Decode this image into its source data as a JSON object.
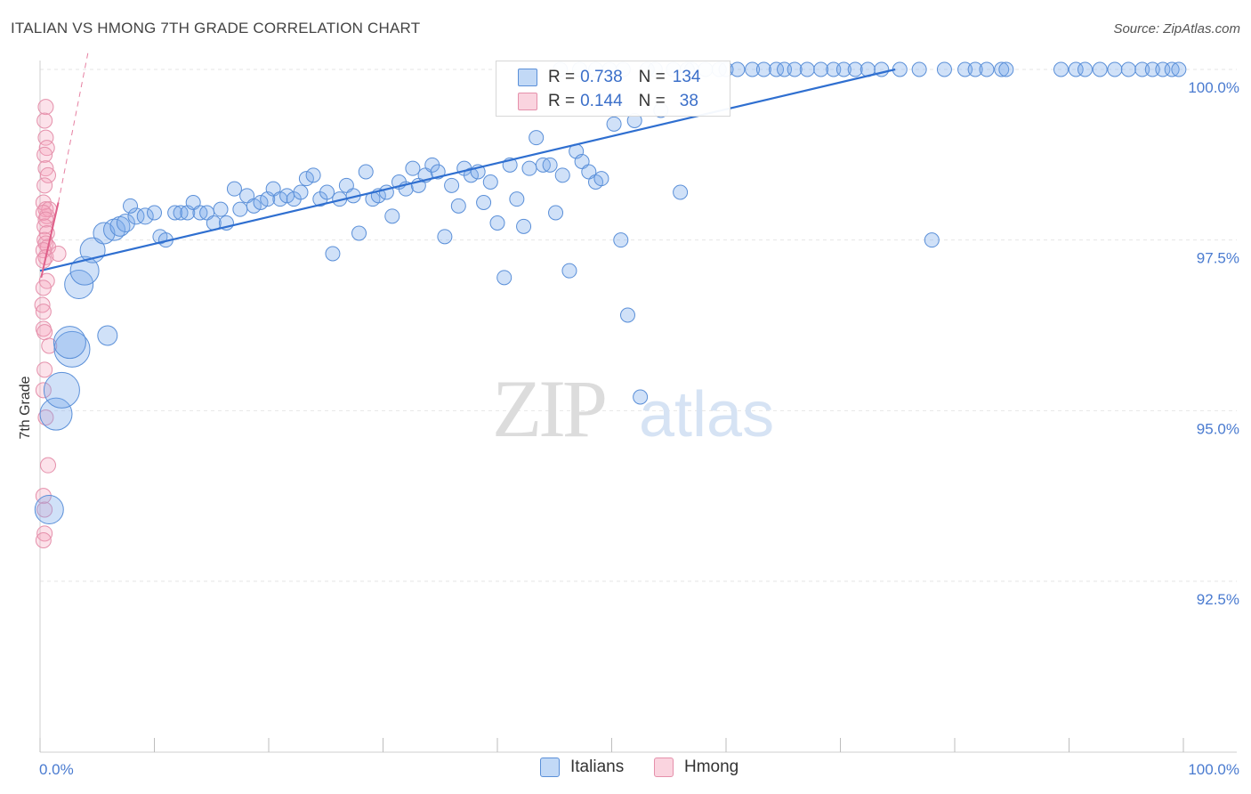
{
  "title": "ITALIAN VS HMONG 7TH GRADE CORRELATION CHART",
  "source": "Source: ZipAtlas.com",
  "watermark": {
    "zip": "ZIP",
    "atlas": "atlas"
  },
  "colors": {
    "italians_fill": "rgba(120,170,235,0.35)",
    "italians_stroke": "#5a8fd8",
    "italians_line": "#2f6fd0",
    "hmong_fill": "rgba(245,160,185,0.30)",
    "hmong_stroke": "#e590ab",
    "hmong_line": "#e0608a",
    "grid": "#e6e6e6",
    "axis_text": "#4a7bd0"
  },
  "legend": {
    "row1": {
      "r_label": "R =",
      "r_value": "0.738",
      "n_label": "N =",
      "n_value": "134"
    },
    "row2": {
      "r_label": "R =",
      "r_value": "0.144",
      "n_label": "N =",
      "n_value": "38"
    }
  },
  "bottom_legend": {
    "italians": "Italians",
    "hmong": "Hmong"
  },
  "chart_data": {
    "type": "scatter",
    "title": "ITALIAN VS HMONG 7TH GRADE CORRELATION CHART",
    "xlabel": "",
    "ylabel": "7th Grade",
    "xlim": [
      0,
      100
    ],
    "ylim": [
      90.2,
      100.3
    ],
    "x_tick_labels": [
      "0.0%",
      "100.0%"
    ],
    "y_ticks": [
      92.5,
      95.0,
      97.5,
      100.0
    ],
    "y_tick_labels": [
      "92.5%",
      "95.0%",
      "97.5%",
      "100.0%"
    ],
    "grid": true,
    "legend_position": "top-center",
    "series": [
      {
        "name": "Italians",
        "R": 0.738,
        "N": 134,
        "trend": {
          "x": [
            0.0,
            74.8
          ],
          "y": [
            97.05,
            100.0
          ]
        },
        "points": [
          [
            0.8,
            93.55,
            1.6
          ],
          [
            1.4,
            94.95,
            1.8
          ],
          [
            1.9,
            95.3,
            2.0
          ],
          [
            2.8,
            95.9,
            2.0
          ],
          [
            2.6,
            96.0,
            1.8
          ],
          [
            3.4,
            96.85,
            1.6
          ],
          [
            3.9,
            97.05,
            1.6
          ],
          [
            4.6,
            97.35,
            1.4
          ],
          [
            5.6,
            97.6,
            1.2
          ],
          [
            6.5,
            97.65,
            1.2
          ],
          [
            7.0,
            97.7,
            1.1
          ],
          [
            5.9,
            96.1,
            1.1
          ],
          [
            7.5,
            97.75,
            1.0
          ],
          [
            8.4,
            97.85,
            0.9
          ],
          [
            9.2,
            97.85,
            0.9
          ],
          [
            10.0,
            97.9,
            0.8
          ],
          [
            7.9,
            98.0,
            0.8
          ],
          [
            10.5,
            97.55,
            0.8
          ],
          [
            11.0,
            97.5,
            0.8
          ],
          [
            11.8,
            97.9,
            0.8
          ],
          [
            12.3,
            97.9,
            0.8
          ],
          [
            12.9,
            97.9,
            0.8
          ],
          [
            13.4,
            98.05,
            0.8
          ],
          [
            14.0,
            97.9,
            0.8
          ],
          [
            14.6,
            97.9,
            0.8
          ],
          [
            15.2,
            97.75,
            0.8
          ],
          [
            15.8,
            97.95,
            0.8
          ],
          [
            16.3,
            97.75,
            0.8
          ],
          [
            17.0,
            98.25,
            0.8
          ],
          [
            17.5,
            97.95,
            0.8
          ],
          [
            18.1,
            98.15,
            0.8
          ],
          [
            18.7,
            98.0,
            0.8
          ],
          [
            19.3,
            98.05,
            0.8
          ],
          [
            19.9,
            98.1,
            0.8
          ],
          [
            20.4,
            98.25,
            0.8
          ],
          [
            21.0,
            98.1,
            0.8
          ],
          [
            21.6,
            98.15,
            0.8
          ],
          [
            22.2,
            98.1,
            0.8
          ],
          [
            22.8,
            98.2,
            0.8
          ],
          [
            23.3,
            98.4,
            0.8
          ],
          [
            23.9,
            98.45,
            0.8
          ],
          [
            24.5,
            98.1,
            0.8
          ],
          [
            25.1,
            98.2,
            0.8
          ],
          [
            25.6,
            97.3,
            0.8
          ],
          [
            26.2,
            98.1,
            0.8
          ],
          [
            26.8,
            98.3,
            0.8
          ],
          [
            27.4,
            98.15,
            0.8
          ],
          [
            27.9,
            97.6,
            0.8
          ],
          [
            28.5,
            98.5,
            0.8
          ],
          [
            29.1,
            98.1,
            0.8
          ],
          [
            29.6,
            98.15,
            0.8
          ],
          [
            30.3,
            98.2,
            0.8
          ],
          [
            30.8,
            97.85,
            0.8
          ],
          [
            31.4,
            98.35,
            0.8
          ],
          [
            32.0,
            98.25,
            0.8
          ],
          [
            32.6,
            98.55,
            0.8
          ],
          [
            33.1,
            98.3,
            0.8
          ],
          [
            33.7,
            98.45,
            0.8
          ],
          [
            34.3,
            98.6,
            0.8
          ],
          [
            34.8,
            98.5,
            0.8
          ],
          [
            35.4,
            97.55,
            0.8
          ],
          [
            36.0,
            98.3,
            0.8
          ],
          [
            36.6,
            98.0,
            0.8
          ],
          [
            37.1,
            98.55,
            0.8
          ],
          [
            37.7,
            98.45,
            0.8
          ],
          [
            38.3,
            98.5,
            0.8
          ],
          [
            38.8,
            98.05,
            0.8
          ],
          [
            39.4,
            98.35,
            0.8
          ],
          [
            40.0,
            97.75,
            0.8
          ],
          [
            40.6,
            96.95,
            0.8
          ],
          [
            41.1,
            98.6,
            0.8
          ],
          [
            41.7,
            98.1,
            0.8
          ],
          [
            42.3,
            97.7,
            0.8
          ],
          [
            42.8,
            98.55,
            0.8
          ],
          [
            43.4,
            99.0,
            0.8
          ],
          [
            44.0,
            98.6,
            0.8
          ],
          [
            44.6,
            98.6,
            0.8
          ],
          [
            45.1,
            97.9,
            0.8
          ],
          [
            45.7,
            98.45,
            0.8
          ],
          [
            46.3,
            97.05,
            0.8
          ],
          [
            46.9,
            98.8,
            0.8
          ],
          [
            47.4,
            98.65,
            0.8
          ],
          [
            48.0,
            98.5,
            0.8
          ],
          [
            48.6,
            98.35,
            0.8
          ],
          [
            49.1,
            98.4,
            0.8
          ],
          [
            50.2,
            99.2,
            0.8
          ],
          [
            50.8,
            97.5,
            0.8
          ],
          [
            51.4,
            96.4,
            0.8
          ],
          [
            52.0,
            99.25,
            0.8
          ],
          [
            52.5,
            95.2,
            0.8
          ],
          [
            53.1,
            100.0,
            0.8
          ],
          [
            54.3,
            99.4,
            0.8
          ],
          [
            55.4,
            100.0,
            0.8
          ],
          [
            56.0,
            98.2,
            0.8
          ],
          [
            57.0,
            100.0,
            0.8
          ],
          [
            59.4,
            100.0,
            0.8
          ],
          [
            60.0,
            100.0,
            0.8
          ],
          [
            62.3,
            100.0,
            0.8
          ],
          [
            63.3,
            100.0,
            0.8
          ],
          [
            64.4,
            100.0,
            0.8
          ],
          [
            65.1,
            100.0,
            0.8
          ],
          [
            67.1,
            100.0,
            0.8
          ],
          [
            68.3,
            100.0,
            0.8
          ],
          [
            69.4,
            100.0,
            0.8
          ],
          [
            70.3,
            100.0,
            0.8
          ],
          [
            71.3,
            100.0,
            0.8
          ],
          [
            72.4,
            100.0,
            0.8
          ],
          [
            75.2,
            100.0,
            0.8
          ],
          [
            76.9,
            100.0,
            0.8
          ],
          [
            78.0,
            97.5,
            0.8
          ],
          [
            79.1,
            100.0,
            0.8
          ],
          [
            80.9,
            100.0,
            0.8
          ],
          [
            81.8,
            100.0,
            0.8
          ],
          [
            82.8,
            100.0,
            0.8
          ],
          [
            84.1,
            100.0,
            0.8
          ],
          [
            89.3,
            100.0,
            0.8
          ],
          [
            90.6,
            100.0,
            0.8
          ],
          [
            91.4,
            100.0,
            0.8
          ],
          [
            92.7,
            100.0,
            0.8
          ],
          [
            94.0,
            100.0,
            0.8
          ],
          [
            95.2,
            100.0,
            0.8
          ],
          [
            96.4,
            100.0,
            0.8
          ],
          [
            97.3,
            100.0,
            0.8
          ],
          [
            98.2,
            100.0,
            0.8
          ],
          [
            99.0,
            100.0,
            0.8
          ],
          [
            99.6,
            100.0,
            0.8
          ],
          [
            45.5,
            100.0,
            0.8
          ],
          [
            47.2,
            100.0,
            0.8
          ],
          [
            48.6,
            100.0,
            0.8
          ],
          [
            49.8,
            100.0,
            0.8
          ],
          [
            51.0,
            100.0,
            0.8
          ],
          [
            53.8,
            100.0,
            0.8
          ],
          [
            56.6,
            100.0,
            0.8
          ],
          [
            58.2,
            100.0,
            0.8
          ],
          [
            61.0,
            100.0,
            0.8
          ],
          [
            66.0,
            100.0,
            0.8
          ],
          [
            73.6,
            100.0,
            0.8
          ],
          [
            84.5,
            100.0,
            0.8
          ]
        ]
      },
      {
        "name": "Hmong",
        "R": 0.144,
        "N": 38,
        "trend": {
          "x": [
            0.1,
            1.6
          ],
          "y": [
            96.95,
            98.05
          ]
        },
        "trend_dashed": {
          "x": [
            1.6,
            4.2
          ],
          "y": [
            98.05,
            100.25
          ]
        },
        "points": [
          [
            0.5,
            99.45
          ],
          [
            0.4,
            99.25
          ],
          [
            0.5,
            99.0
          ],
          [
            0.6,
            98.85
          ],
          [
            0.4,
            98.75
          ],
          [
            0.5,
            98.55
          ],
          [
            0.7,
            98.45
          ],
          [
            0.4,
            98.3
          ],
          [
            0.3,
            98.05
          ],
          [
            0.5,
            97.95
          ],
          [
            0.6,
            97.85
          ],
          [
            0.8,
            97.95
          ],
          [
            0.3,
            97.9
          ],
          [
            0.5,
            97.8
          ],
          [
            0.4,
            97.7
          ],
          [
            0.6,
            97.6
          ],
          [
            0.4,
            97.5
          ],
          [
            0.5,
            97.45
          ],
          [
            0.7,
            97.4
          ],
          [
            0.3,
            97.35
          ],
          [
            0.5,
            97.25
          ],
          [
            1.6,
            97.3
          ],
          [
            0.3,
            97.2
          ],
          [
            0.6,
            96.9
          ],
          [
            0.3,
            96.8
          ],
          [
            0.2,
            96.55
          ],
          [
            0.3,
            96.45
          ],
          [
            0.3,
            96.2
          ],
          [
            0.4,
            96.15
          ],
          [
            0.8,
            95.95
          ],
          [
            0.4,
            95.6
          ],
          [
            0.3,
            95.3
          ],
          [
            0.5,
            94.9
          ],
          [
            0.7,
            94.2
          ],
          [
            0.3,
            93.75
          ],
          [
            0.4,
            93.55
          ],
          [
            0.4,
            93.2
          ],
          [
            0.3,
            93.1
          ]
        ]
      }
    ]
  }
}
